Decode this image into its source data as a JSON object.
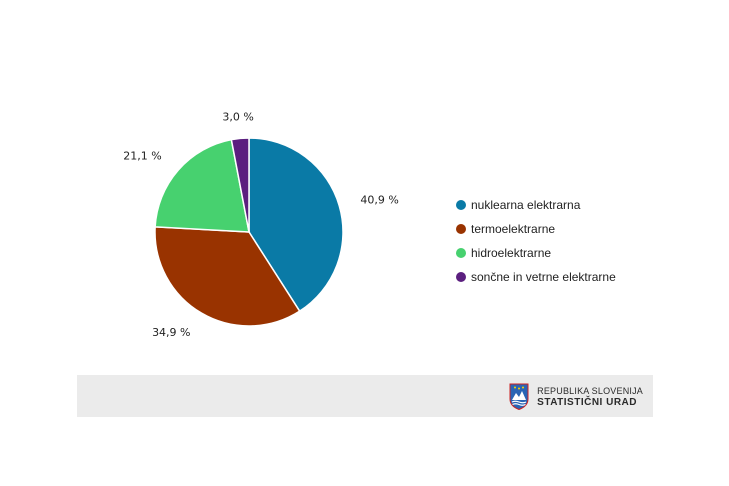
{
  "chart_data": {
    "type": "pie",
    "categories": [
      "nuklearna elektrarna",
      "termoelektrarne",
      "hidroelektrarne",
      "sončne in vetrne elektrarne"
    ],
    "values": [
      40.9,
      34.9,
      21.1,
      3.0
    ],
    "labels": [
      "40,9 %",
      "34,9 %",
      "21,1 %",
      "3,0 %"
    ],
    "colors": [
      "#0a7aa6",
      "#993300",
      "#47d16f",
      "#5b1f7f"
    ],
    "legend_position": "right"
  },
  "legend": {
    "items": [
      {
        "label": "nuklearna elektrarna",
        "color": "#0a7aa6"
      },
      {
        "label": "termoelektrarne",
        "color": "#993300"
      },
      {
        "label": "hidroelektrarne",
        "color": "#47d16f"
      },
      {
        "label": "sončne in vetrne elektrarne",
        "color": "#5b1f7f"
      }
    ]
  },
  "footer": {
    "logo_line1": "REPUBLIKA SLOVENIJA",
    "logo_line2": "STATISTIČNI URAD",
    "logo_icon": "slovenia-coat-of-arms-icon"
  }
}
